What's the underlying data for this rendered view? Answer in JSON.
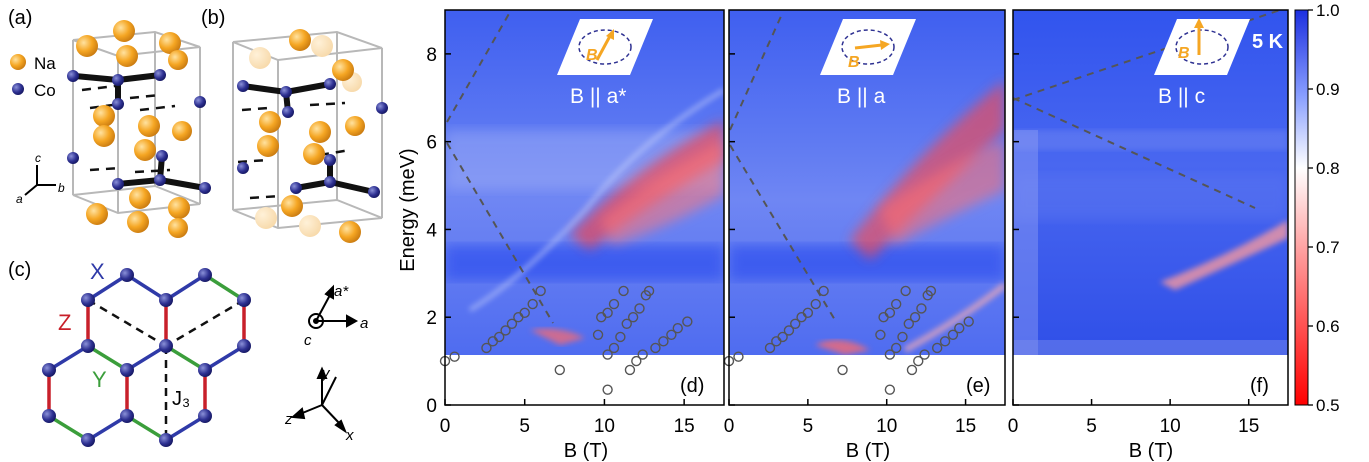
{
  "panel_labels": {
    "a": "(a)",
    "b": "(b)",
    "c": "(c)",
    "d": "(d)",
    "e": "(e)",
    "f": "(f)"
  },
  "legend": {
    "na": "Na",
    "co": "Co"
  },
  "axes_crystal": {
    "c": "c",
    "a": "a",
    "b": "b"
  },
  "bond_labels": {
    "x": "X",
    "y": "Y",
    "z": "Z",
    "j3": "J₃"
  },
  "axes_lattice": {
    "a_star": "a*",
    "a": "a",
    "c": "c"
  },
  "axes_xyz": {
    "x": "x",
    "y": "y",
    "z": "z"
  },
  "colors": {
    "na": "#f5a623",
    "co": "#2e3192",
    "bond_x": "#2f3aa8",
    "bond_y": "#3b9e3b",
    "bond_z": "#c8202a",
    "field_arrow": "#f5a623"
  },
  "spectra": {
    "ylabel": "Energy (meV)",
    "xlabel": "B (T)",
    "xticks": [
      "0",
      "5",
      "10",
      "15"
    ],
    "yticks": [
      "0",
      "2",
      "4",
      "6",
      "8"
    ],
    "temperature": "5 K",
    "panels": [
      {
        "label": "(d)",
        "field": "B || a*",
        "inset_arrow": "B"
      },
      {
        "label": "(e)",
        "field": "B || a",
        "inset_arrow": "B"
      },
      {
        "label": "(f)",
        "field": "B || c",
        "inset_arrow": "B"
      }
    ]
  },
  "colorbar": {
    "ticks": [
      "1.0",
      "0.9",
      "0.8",
      "0.7",
      "0.6",
      "0.5"
    ]
  },
  "chart_data": {
    "type": "heatmap",
    "xlabel": "B (T)",
    "ylabel": "Energy (meV)",
    "xlim": [
      0,
      17.5
    ],
    "ylim": [
      0,
      9
    ],
    "color_range": [
      0.5,
      1.0
    ],
    "panels": [
      {
        "label": "(d)",
        "field": "B || a*",
        "points": [
          [
            0,
            1.0
          ],
          [
            0.6,
            1.1
          ],
          [
            2.6,
            1.3
          ],
          [
            3.0,
            1.45
          ],
          [
            3.4,
            1.55
          ],
          [
            3.8,
            1.7
          ],
          [
            4.2,
            1.85
          ],
          [
            4.6,
            2.0
          ],
          [
            5.0,
            2.1
          ],
          [
            5.5,
            2.3
          ],
          [
            6.0,
            2.6
          ],
          [
            7.2,
            0.8
          ],
          [
            9.6,
            1.6
          ],
          [
            9.8,
            2.0
          ],
          [
            10.2,
            2.1
          ],
          [
            10.6,
            2.3
          ],
          [
            10.2,
            1.15
          ],
          [
            10.6,
            1.3
          ],
          [
            11.0,
            1.55
          ],
          [
            11.4,
            1.85
          ],
          [
            11.8,
            2.0
          ],
          [
            12.2,
            2.2
          ],
          [
            12.6,
            2.5
          ],
          [
            12.8,
            2.6
          ],
          [
            11.2,
            2.6
          ],
          [
            10.2,
            0.35
          ],
          [
            11.6,
            0.8
          ],
          [
            12.0,
            1.0
          ],
          [
            12.4,
            1.15
          ],
          [
            13.2,
            1.3
          ],
          [
            13.7,
            1.45
          ],
          [
            14.2,
            1.6
          ],
          [
            14.6,
            1.75
          ],
          [
            15.2,
            1.9
          ]
        ]
      },
      {
        "label": "(e)",
        "field": "B || a",
        "points": [
          [
            0,
            1.0
          ],
          [
            0.6,
            1.1
          ],
          [
            2.6,
            1.3
          ],
          [
            3.0,
            1.45
          ],
          [
            3.4,
            1.55
          ],
          [
            3.8,
            1.7
          ],
          [
            4.2,
            1.85
          ],
          [
            4.6,
            2.0
          ],
          [
            5.0,
            2.1
          ],
          [
            5.5,
            2.3
          ],
          [
            6.0,
            2.6
          ],
          [
            7.2,
            0.8
          ],
          [
            9.6,
            1.6
          ],
          [
            9.8,
            2.0
          ],
          [
            10.2,
            2.1
          ],
          [
            10.6,
            2.3
          ],
          [
            10.2,
            1.15
          ],
          [
            10.6,
            1.3
          ],
          [
            11.0,
            1.55
          ],
          [
            11.4,
            1.85
          ],
          [
            11.8,
            2.0
          ],
          [
            12.2,
            2.2
          ],
          [
            12.6,
            2.5
          ],
          [
            12.8,
            2.6
          ],
          [
            11.2,
            2.6
          ],
          [
            10.2,
            0.35
          ],
          [
            11.6,
            0.8
          ],
          [
            12.0,
            1.0
          ],
          [
            12.4,
            1.15
          ],
          [
            13.2,
            1.3
          ],
          [
            13.7,
            1.45
          ],
          [
            14.2,
            1.6
          ],
          [
            14.6,
            1.75
          ],
          [
            15.2,
            1.9
          ]
        ]
      },
      {
        "label": "(f)",
        "field": "B || c",
        "points": []
      }
    ]
  }
}
